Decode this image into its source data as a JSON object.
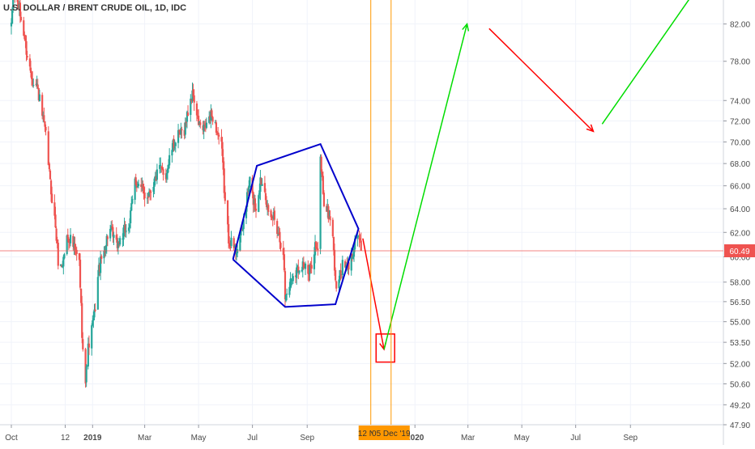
{
  "symbol_title": "U.S. DOLLAR / BRENT CRUDE OIL, 1D, IDC",
  "colors": {
    "up": "#26a69a",
    "down": "#ef5350",
    "grid": "#f0f3fa",
    "axis_text": "#4a4a4a",
    "last_price_line": "#ef5350",
    "last_price_badge": "#ef5350",
    "vline": "#ff9800",
    "vline_badge": "#ff9800",
    "drawing_blue": "#0000cc",
    "drawing_red": "#ff0000",
    "drawing_green": "#00dd00"
  },
  "chart_data": {
    "type": "candlestick",
    "title": "U.S. DOLLAR / BRENT CRUDE OIL, 1D, IDC",
    "log_scale": true,
    "grid": true,
    "x_range": [
      "2018-10-01",
      "2020-11-15"
    ],
    "y_range": [
      47.9,
      84.5
    ],
    "y_ticks": [
      "82.00",
      "78.00",
      "74.00",
      "72.00",
      "70.00",
      "68.00",
      "66.00",
      "64.00",
      "62.00",
      "60.00",
      "58.00",
      "56.50",
      "55.00",
      "53.50",
      "52.00",
      "50.60",
      "49.20",
      "47.90"
    ],
    "x_ticks": [
      {
        "date": "2018-10-01",
        "label": "Oct",
        "bold": false
      },
      {
        "date": "2018-12-01",
        "label": "12",
        "bold": false
      },
      {
        "date": "2019-01-01",
        "label": "2019",
        "bold": true
      },
      {
        "date": "2019-03-01",
        "label": "Mar",
        "bold": false
      },
      {
        "date": "2019-05-01",
        "label": "May",
        "bold": false
      },
      {
        "date": "2019-07-01",
        "label": "Jul",
        "bold": false
      },
      {
        "date": "2019-09-01",
        "label": "Sep",
        "bold": false
      },
      {
        "date": "2020-01-01",
        "label": "2020",
        "bold": true
      },
      {
        "date": "2020-03-01",
        "label": "Mar",
        "bold": false
      },
      {
        "date": "2020-05-01",
        "label": "May",
        "bold": false
      },
      {
        "date": "2020-07-01",
        "label": "Jul",
        "bold": false
      },
      {
        "date": "2020-09-01",
        "label": "Sep",
        "bold": false
      }
    ],
    "last_price": 60.49,
    "last_price_label": "60.49",
    "series_anchors": [
      [
        "2018-10-01",
        81.5
      ],
      [
        "2018-10-03",
        85.5
      ],
      [
        "2018-10-09",
        84.0
      ],
      [
        "2018-10-15",
        81.0
      ],
      [
        "2018-10-20",
        78.0
      ],
      [
        "2018-10-25",
        76.2
      ],
      [
        "2018-10-30",
        75.5
      ],
      [
        "2018-11-05",
        72.5
      ],
      [
        "2018-11-10",
        70.0
      ],
      [
        "2018-11-14",
        66.2
      ],
      [
        "2018-11-20",
        62.5
      ],
      [
        "2018-11-24",
        58.8
      ],
      [
        "2018-11-28",
        59.5
      ],
      [
        "2018-12-03",
        61.6
      ],
      [
        "2018-12-07",
        61.5
      ],
      [
        "2018-12-12",
        60.5
      ],
      [
        "2018-12-17",
        59.5
      ],
      [
        "2018-12-20",
        54.3
      ],
      [
        "2018-12-24",
        50.7
      ],
      [
        "2018-12-27",
        53.0
      ],
      [
        "2019-01-03",
        55.5
      ],
      [
        "2019-01-08",
        59.0
      ],
      [
        "2019-01-14",
        60.5
      ],
      [
        "2019-01-20",
        62.4
      ],
      [
        "2019-01-28",
        60.9
      ],
      [
        "2019-02-05",
        61.9
      ],
      [
        "2019-02-12",
        62.8
      ],
      [
        "2019-02-18",
        66.5
      ],
      [
        "2019-02-24",
        65.8
      ],
      [
        "2019-03-03",
        65.0
      ],
      [
        "2019-03-10",
        66.1
      ],
      [
        "2019-03-18",
        67.5
      ],
      [
        "2019-03-25",
        67.0
      ],
      [
        "2019-04-01",
        69.4
      ],
      [
        "2019-04-08",
        70.5
      ],
      [
        "2019-04-15",
        71.2
      ],
      [
        "2019-04-22",
        74.2
      ],
      [
        "2019-04-25",
        74.6
      ],
      [
        "2019-04-30",
        72.0
      ],
      [
        "2019-05-06",
        71.0
      ],
      [
        "2019-05-13",
        72.2
      ],
      [
        "2019-05-17",
        72.5
      ],
      [
        "2019-05-22",
        71.0
      ],
      [
        "2019-05-27",
        69.5
      ],
      [
        "2019-05-31",
        64.5
      ],
      [
        "2019-06-04",
        61.5
      ],
      [
        "2019-06-12",
        60.5
      ],
      [
        "2019-06-19",
        62.0
      ],
      [
        "2019-06-24",
        64.5
      ],
      [
        "2019-06-28",
        66.5
      ],
      [
        "2019-07-01",
        65.0
      ],
      [
        "2019-07-05",
        64.0
      ],
      [
        "2019-07-10",
        66.5
      ],
      [
        "2019-07-15",
        66.0
      ],
      [
        "2019-07-20",
        62.5
      ],
      [
        "2019-07-25",
        63.5
      ],
      [
        "2019-08-01",
        61.5
      ],
      [
        "2019-08-05",
        60.5
      ],
      [
        "2019-08-07",
        56.8
      ],
      [
        "2019-08-15",
        58.5
      ],
      [
        "2019-08-20",
        59.0
      ],
      [
        "2019-08-27",
        59.5
      ],
      [
        "2019-09-03",
        58.5
      ],
      [
        "2019-09-10",
        61.0
      ],
      [
        "2019-09-13",
        60.2
      ],
      [
        "2019-09-16",
        68.5
      ],
      [
        "2019-09-20",
        64.5
      ],
      [
        "2019-09-25",
        63.5
      ],
      [
        "2019-09-30",
        62.0
      ],
      [
        "2019-10-03",
        57.7
      ],
      [
        "2019-10-08",
        58.5
      ],
      [
        "2019-10-12",
        59.5
      ],
      [
        "2019-10-16",
        59.0
      ],
      [
        "2019-10-21",
        59.8
      ],
      [
        "2019-10-25",
        61.5
      ],
      [
        "2019-10-29",
        61.8
      ],
      [
        "2019-11-01",
        60.49
      ]
    ],
    "drawings": {
      "blue_polygon_dates_prices": [
        [
          "2019-06-09",
          59.8
        ],
        [
          "2019-07-06",
          67.8
        ],
        [
          "2019-09-16",
          69.8
        ],
        [
          "2019-10-29",
          62.3
        ],
        [
          "2019-10-03",
          56.3
        ],
        [
          "2019-08-07",
          56.1
        ],
        [
          "2019-06-09",
          59.8
        ]
      ],
      "red_arrow_1": [
        [
          "2019-11-03",
          61.5
        ],
        [
          "2019-11-27",
          53.0
        ]
      ],
      "red_box": [
        [
          "2019-11-18",
          54.1
        ],
        [
          "2019-12-09",
          52.1
        ]
      ],
      "green_arrow_1": [
        [
          "2019-11-27",
          53.0
        ],
        [
          "2020-02-29",
          82.0
        ]
      ],
      "red_arrow_2": [
        [
          "2020-03-25",
          81.5
        ],
        [
          "2020-07-21",
          71.0
        ]
      ],
      "green_arrow_2": [
        [
          "2020-07-31",
          71.7
        ],
        [
          "2020-11-15",
          86.0
        ]
      ]
    },
    "vertical_markers": [
      {
        "date": "2019-11-12",
        "label": "12 Nov"
      },
      {
        "date": "2019-12-05",
        "label": "05 Dec '19"
      }
    ]
  }
}
